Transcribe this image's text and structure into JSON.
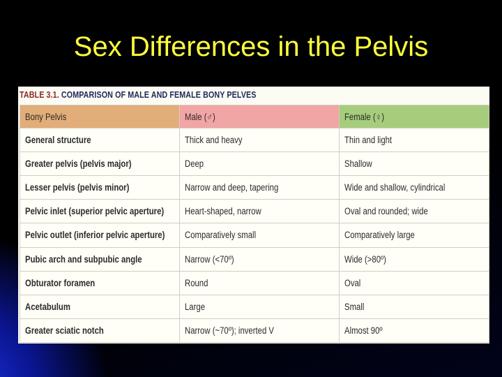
{
  "slide": {
    "title": "Sex Differences in the Pelvis"
  },
  "table": {
    "caption_number": "TABLE 3.1.",
    "caption_title": "COMPARISON OF MALE AND FEMALE BONY PELVES",
    "headers": [
      "Bony Pelvis",
      "Male (♂)",
      "Female (♀)"
    ],
    "header_colors": [
      "#e2ad78",
      "#f1a5a4",
      "#a6cd7c"
    ],
    "rows": [
      [
        "General structure",
        "Thick and heavy",
        "Thin and light"
      ],
      [
        "Greater pelvis (pelvis major)",
        "Deep",
        "Shallow"
      ],
      [
        "Lesser pelvis (pelvis minor)",
        "Narrow and deep, tapering",
        "Wide and shallow, cylindrical"
      ],
      [
        "Pelvic inlet (superior pelvic aperture)",
        "Heart-shaped, narrow",
        "Oval and rounded; wide"
      ],
      [
        "Pelvic outlet (inferior pelvic aperture)",
        "Comparatively small",
        "Comparatively large"
      ],
      [
        "Pubic arch and subpubic angle",
        "Narrow (<70º)",
        "Wide (>80º)"
      ],
      [
        "Obturator foramen",
        "Round",
        "Oval"
      ],
      [
        "Acetabulum",
        "Large",
        "Small"
      ],
      [
        "Greater sciatic notch",
        "Narrow (~70º); inverted V",
        "Almost 90º"
      ]
    ]
  }
}
